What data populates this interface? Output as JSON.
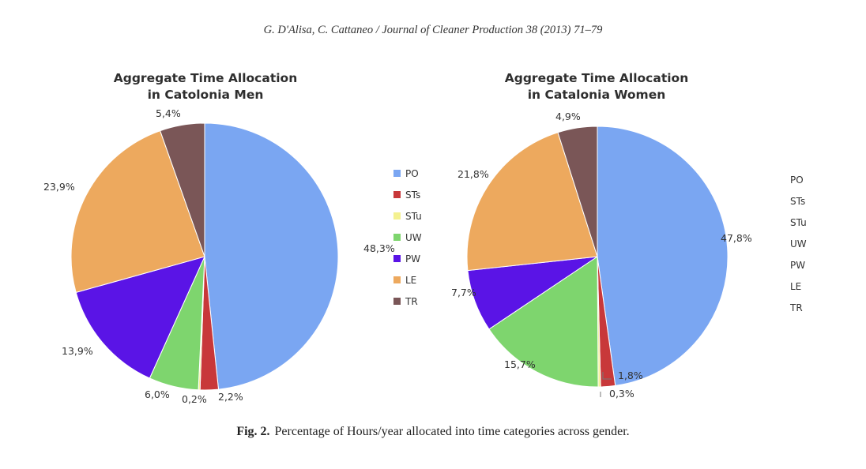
{
  "header": {
    "running_head": "G. D'Alisa, C. Cattaneo / Journal of Cleaner Production 38 (2013) 71–79"
  },
  "caption": {
    "label": "Fig. 2.",
    "text": "Percentage of Hours/year allocated into time categories across gender."
  },
  "legend_labels": [
    "PO",
    "STs",
    "STu",
    "UW",
    "PW",
    "LE",
    "TR"
  ],
  "colors": {
    "PO": "#7aa6f2",
    "STs": "#c8383a",
    "STu": "#f4f190",
    "UW": "#7ed56e",
    "PW": "#5a14e6",
    "LE": "#eda95e",
    "TR": "#7a5657"
  },
  "chart_data": [
    {
      "type": "pie",
      "title_lines": [
        "Aggregate Time Allocation",
        "in Catolonia Men"
      ],
      "legend_position": "right",
      "slices": [
        {
          "category": "PO",
          "value": 48.3,
          "label": "48,3%"
        },
        {
          "category": "STs",
          "value": 2.2,
          "label": "2,2%"
        },
        {
          "category": "STu",
          "value": 0.2,
          "label": "0,2%"
        },
        {
          "category": "UW",
          "value": 6.0,
          "label": "6,0%"
        },
        {
          "category": "PW",
          "value": 13.9,
          "label": "13,9%"
        },
        {
          "category": "LE",
          "value": 23.9,
          "label": "23,9%"
        },
        {
          "category": "TR",
          "value": 5.4,
          "label": "5,4%"
        }
      ]
    },
    {
      "type": "pie",
      "title_lines": [
        "Aggregate Time Allocation",
        "in Catalonia Women"
      ],
      "legend_position": "right",
      "slices": [
        {
          "category": "PO",
          "value": 47.8,
          "label": "47,8%"
        },
        {
          "category": "STs",
          "value": 1.8,
          "label": "1,8%"
        },
        {
          "category": "STu",
          "value": 0.3,
          "label": "0,3%"
        },
        {
          "category": "UW",
          "value": 15.7,
          "label": "15,7%"
        },
        {
          "category": "PW",
          "value": 7.7,
          "label": "7,7%"
        },
        {
          "category": "LE",
          "value": 21.8,
          "label": "21,8%"
        },
        {
          "category": "TR",
          "value": 4.9,
          "label": "4,9%"
        }
      ]
    }
  ]
}
